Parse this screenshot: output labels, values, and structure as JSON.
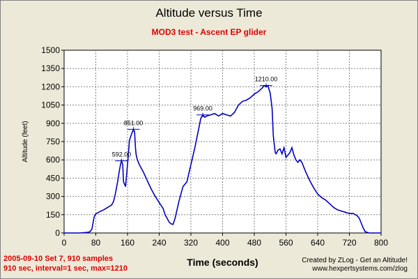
{
  "colors": {
    "background": "#ece9d8",
    "plot_background": "#ffffff",
    "grid": "#808080",
    "series": "#0000c0",
    "subtitle": "#e00000",
    "info": "#e00000"
  },
  "info": {
    "line1": "2005-09-10  Set 7, 910 samples",
    "line2": "910 sec, interval=1 sec, max=1210"
  },
  "credit": {
    "line1": "Created by ZLog - Get an Altitude!",
    "line2": "www.hexpertsystems.com/zlog"
  },
  "chart_data": {
    "type": "line",
    "title": "Altitude versus Time",
    "subtitle": "MOD3 test - Ascent EP glider",
    "xlabel": "Time (seconds)",
    "ylabel": "Altitude (feet)",
    "xlim": [
      0,
      800
    ],
    "ylim": [
      0,
      1500
    ],
    "x_ticks": [
      0,
      80,
      160,
      240,
      320,
      400,
      480,
      560,
      640,
      720,
      800
    ],
    "y_ticks": [
      0,
      150,
      300,
      450,
      600,
      750,
      900,
      1050,
      1200,
      1350,
      1500
    ],
    "grid": true,
    "series": [
      {
        "x": [
          0,
          20,
          40,
          60,
          65,
          70,
          73,
          75,
          78,
          82,
          90,
          100,
          110,
          120,
          125,
          130,
          135,
          140,
          143,
          145,
          148,
          150,
          155,
          160,
          165,
          170,
          175,
          178,
          180,
          182,
          185,
          190,
          200,
          210,
          220,
          230,
          240,
          250,
          255,
          260,
          265,
          270,
          275,
          280,
          290,
          300,
          310,
          320,
          330,
          340,
          345,
          350,
          355,
          360,
          370,
          380,
          390,
          400,
          410,
          420,
          430,
          440,
          450,
          460,
          470,
          480,
          490,
          500,
          505,
          510,
          515,
          517,
          520,
          525,
          528,
          530,
          533,
          535,
          540,
          545,
          550,
          555,
          560,
          565,
          570,
          575,
          580,
          585,
          590,
          595,
          600,
          610,
          620,
          630,
          640,
          650,
          660,
          670,
          680,
          690,
          700,
          710,
          720,
          730,
          740,
          745,
          750,
          755,
          760,
          770,
          790,
          800
        ],
        "y": [
          0,
          0,
          0,
          5,
          10,
          30,
          80,
          120,
          150,
          160,
          175,
          190,
          210,
          230,
          260,
          330,
          420,
          520,
          570,
          592,
          560,
          420,
          380,
          560,
          760,
          810,
          851,
          830,
          700,
          640,
          600,
          560,
          500,
          430,
          360,
          300,
          250,
          200,
          150,
          120,
          90,
          75,
          70,
          120,
          260,
          380,
          420,
          560,
          700,
          860,
          940,
          969,
          950,
          960,
          970,
          980,
          960,
          980,
          970,
          960,
          990,
          1050,
          1080,
          1090,
          1110,
          1140,
          1160,
          1190,
          1210,
          1200,
          1210,
          1180,
          1150,
          1020,
          800,
          740,
          660,
          650,
          680,
          690,
          650,
          700,
          620,
          640,
          660,
          700,
          640,
          600,
          580,
          600,
          580,
          500,
          430,
          370,
          320,
          290,
          270,
          240,
          210,
          190,
          180,
          170,
          160,
          160,
          140,
          120,
          80,
          40,
          10,
          0,
          0,
          0
        ],
        "peak_labels": [
          {
            "x": 145,
            "y": 592,
            "label": "592.00"
          },
          {
            "x": 175,
            "y": 851,
            "label": "851.00"
          },
          {
            "x": 350,
            "y": 969,
            "label": "969.00"
          },
          {
            "x": 510,
            "y": 1210,
            "label": "1210.00"
          }
        ]
      }
    ]
  }
}
